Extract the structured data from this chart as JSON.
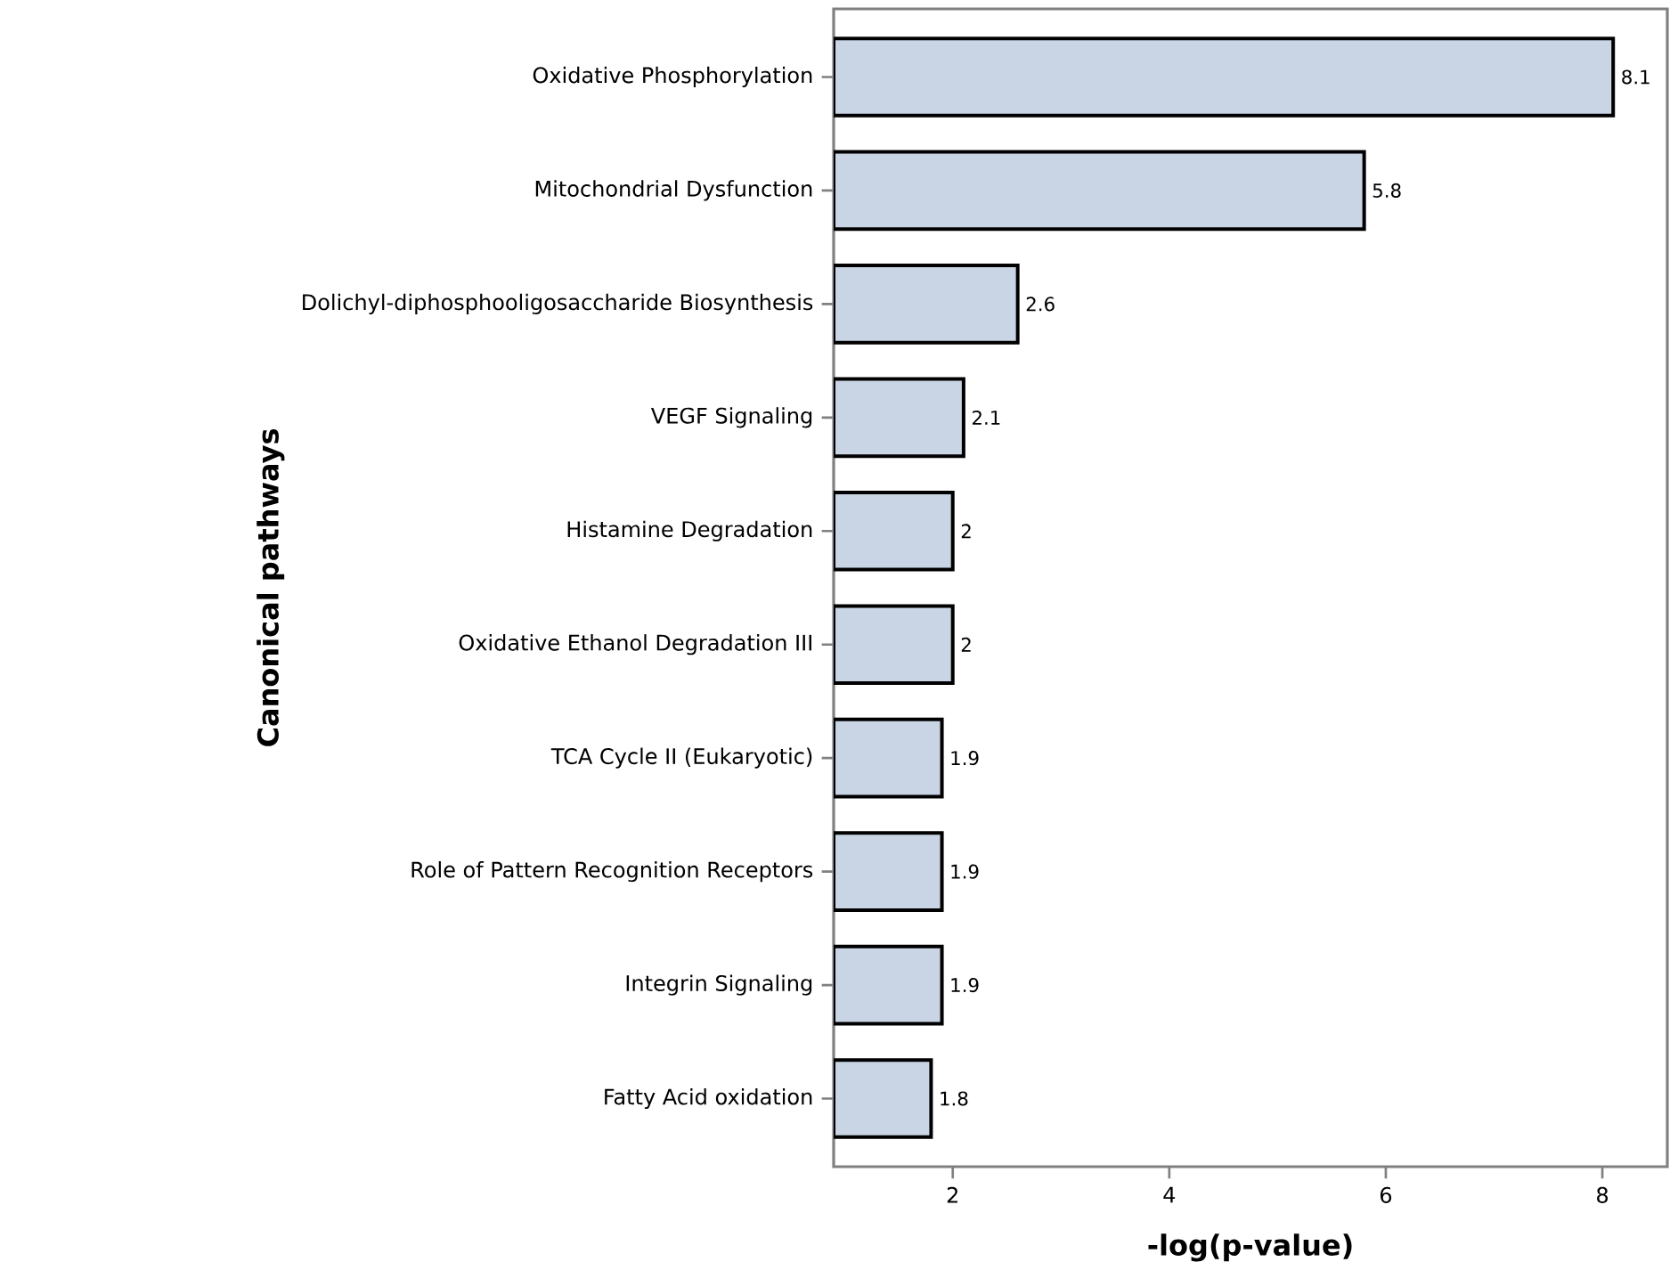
{
  "chart_data": {
    "type": "bar",
    "orientation": "horizontal",
    "xlabel": "-log(p-value)",
    "ylabel": "Canonical pathways",
    "categories": [
      "Oxidative Phosphorylation",
      "Mitochondrial Dysfunction",
      "Dolichyl-diphosphooligosaccharide Biosynthesis",
      "VEGF Signaling",
      "Histamine Degradation",
      "Oxidative Ethanol Degradation III",
      "TCA Cycle II (Eukaryotic)",
      "Role of Pattern Recognition Receptors",
      "Integrin Signaling",
      "Fatty Acid oxidation"
    ],
    "values": [
      8.1,
      5.8,
      2.6,
      2.1,
      2,
      2,
      1.9,
      1.9,
      1.9,
      1.8
    ],
    "color": "#c9d5e4",
    "xlim": [
      0.9,
      8.6
    ],
    "xticks": [
      2,
      4,
      6,
      8
    ],
    "data_labels": true
  }
}
